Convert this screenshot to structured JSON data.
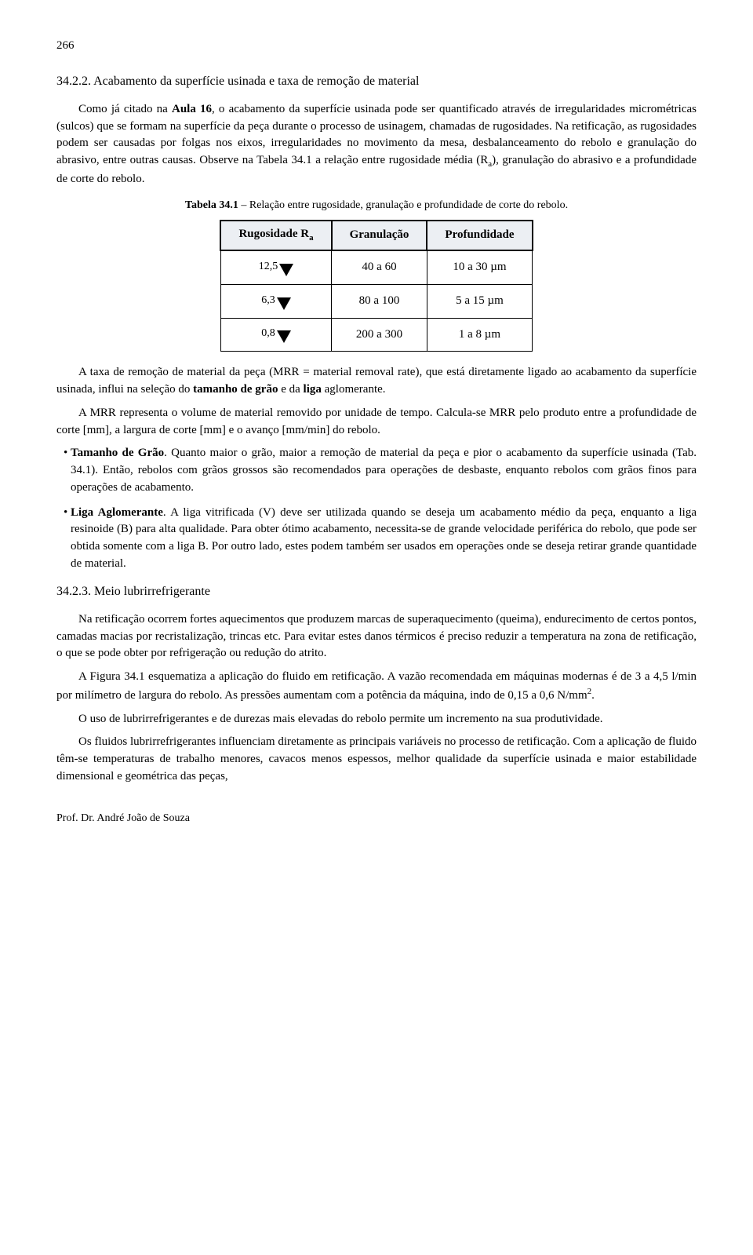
{
  "page_number": "266",
  "section_34_2_2": {
    "heading": "34.2.2. Acabamento da superfície usinada e taxa de remoção de material",
    "p1_a": "Como já citado na ",
    "p1_bold": "Aula 16",
    "p1_b": ", o acabamento da superfície usinada pode ser quantificado através de irregularidades micrométricas (sulcos) que se formam na superfície da peça durante o processo de usinagem, chamadas de rugosidades. Na retificação, as rugosidades podem ser causadas por folgas nos eixos, irregularidades no movimento da mesa, desbalanceamento do rebolo e granulação do abrasivo, entre outras causas. Observe na Tabela 34.1 a relação entre rugosidade média (R",
    "p1_sub": "a",
    "p1_c": "), granulação do abrasivo e a profundidade de corte do rebolo."
  },
  "table": {
    "caption_bold": "Tabela 34.1",
    "caption_rest": " – Relação entre rugosidade, granulação e profundidade de corte do rebolo.",
    "headers": {
      "c1_a": "Rugosidade R",
      "c1_sub": "a",
      "c2": "Granulação",
      "c3": "Profundidade"
    },
    "rows": [
      {
        "r": "12,5",
        "g": "40 a 60",
        "p": "10 a 30 µm"
      },
      {
        "r": "6,3",
        "g": "80 a 100",
        "p": "5 a 15 µm"
      },
      {
        "r": "0,8",
        "g": "200 a 300",
        "p": "1 a 8 µm"
      }
    ]
  },
  "after_table": {
    "p1_a": "A taxa de remoção de material da peça (MRR = material removal rate), que está diretamente ligado ao acabamento da superfície usinada, influi na seleção do ",
    "p1_b1": "tamanho de grão",
    "p1_mid": " e da ",
    "p1_b2": "liga",
    "p1_end": " aglomerante.",
    "p2": "A MRR representa o volume de material removido por unidade de tempo. Calcula-se MRR pelo produto entre a profundidade de corte [mm], a largura de corte [mm] e o avanço [mm/min] do rebolo."
  },
  "bullets": {
    "b1_bold": "Tamanho de Grão",
    "b1_text": ". Quanto maior o grão, maior a remoção de material da peça e pior o acabamento da superfície usinada (Tab. 34.1). Então, rebolos com grãos grossos são recomendados para operações de desbaste, enquanto rebolos com grãos finos para operações de acabamento.",
    "b2_bold": "Liga Aglomerante",
    "b2_text": ". A liga vitrificada (V) deve ser utilizada quando se deseja um acabamento médio da peça, enquanto a liga resinoide (B) para alta qualidade. Para obter ótimo acabamento, necessita-se de grande velocidade periférica do rebolo, que pode ser obtida somente com a liga B. Por outro lado, estes podem também ser usados em operações onde se deseja retirar grande quantidade de material."
  },
  "section_34_2_3": {
    "heading": "34.2.3. Meio lubrirrefrigerante",
    "p1": "Na retificação ocorrem fortes aquecimentos que produzem marcas de superaquecimento (queima), endurecimento de certos pontos, camadas macias por recristalização, trincas etc. Para evitar estes danos térmicos é preciso reduzir a temperatura na zona de retificação, o que se pode obter por refrigeração ou redução do atrito.",
    "p2_a": "A Figura 34.1 esquematiza a aplicação do fluido em retificação. A vazão recomendada em máquinas modernas é de 3 a 4,5 l/min por milímetro de largura do rebolo. As pressões aumentam com a potência da máquina, indo de 0,15 a 0,6 N/mm",
    "p2_sup": "2",
    "p2_b": ".",
    "p3": "O uso de lubrirrefrigerantes e de durezas mais elevadas do rebolo permite um incremento na sua produtividade.",
    "p4": "Os fluidos lubrirrefrigerantes influenciam diretamente as principais variáveis no processo de retificação. Com a aplicação de fluido têm-se temperaturas de trabalho menores, cavacos menos espessos, melhor qualidade da superfície usinada e maior estabilidade dimensional e geométrica das peças,"
  },
  "footer": "Prof. Dr. André João de Souza"
}
